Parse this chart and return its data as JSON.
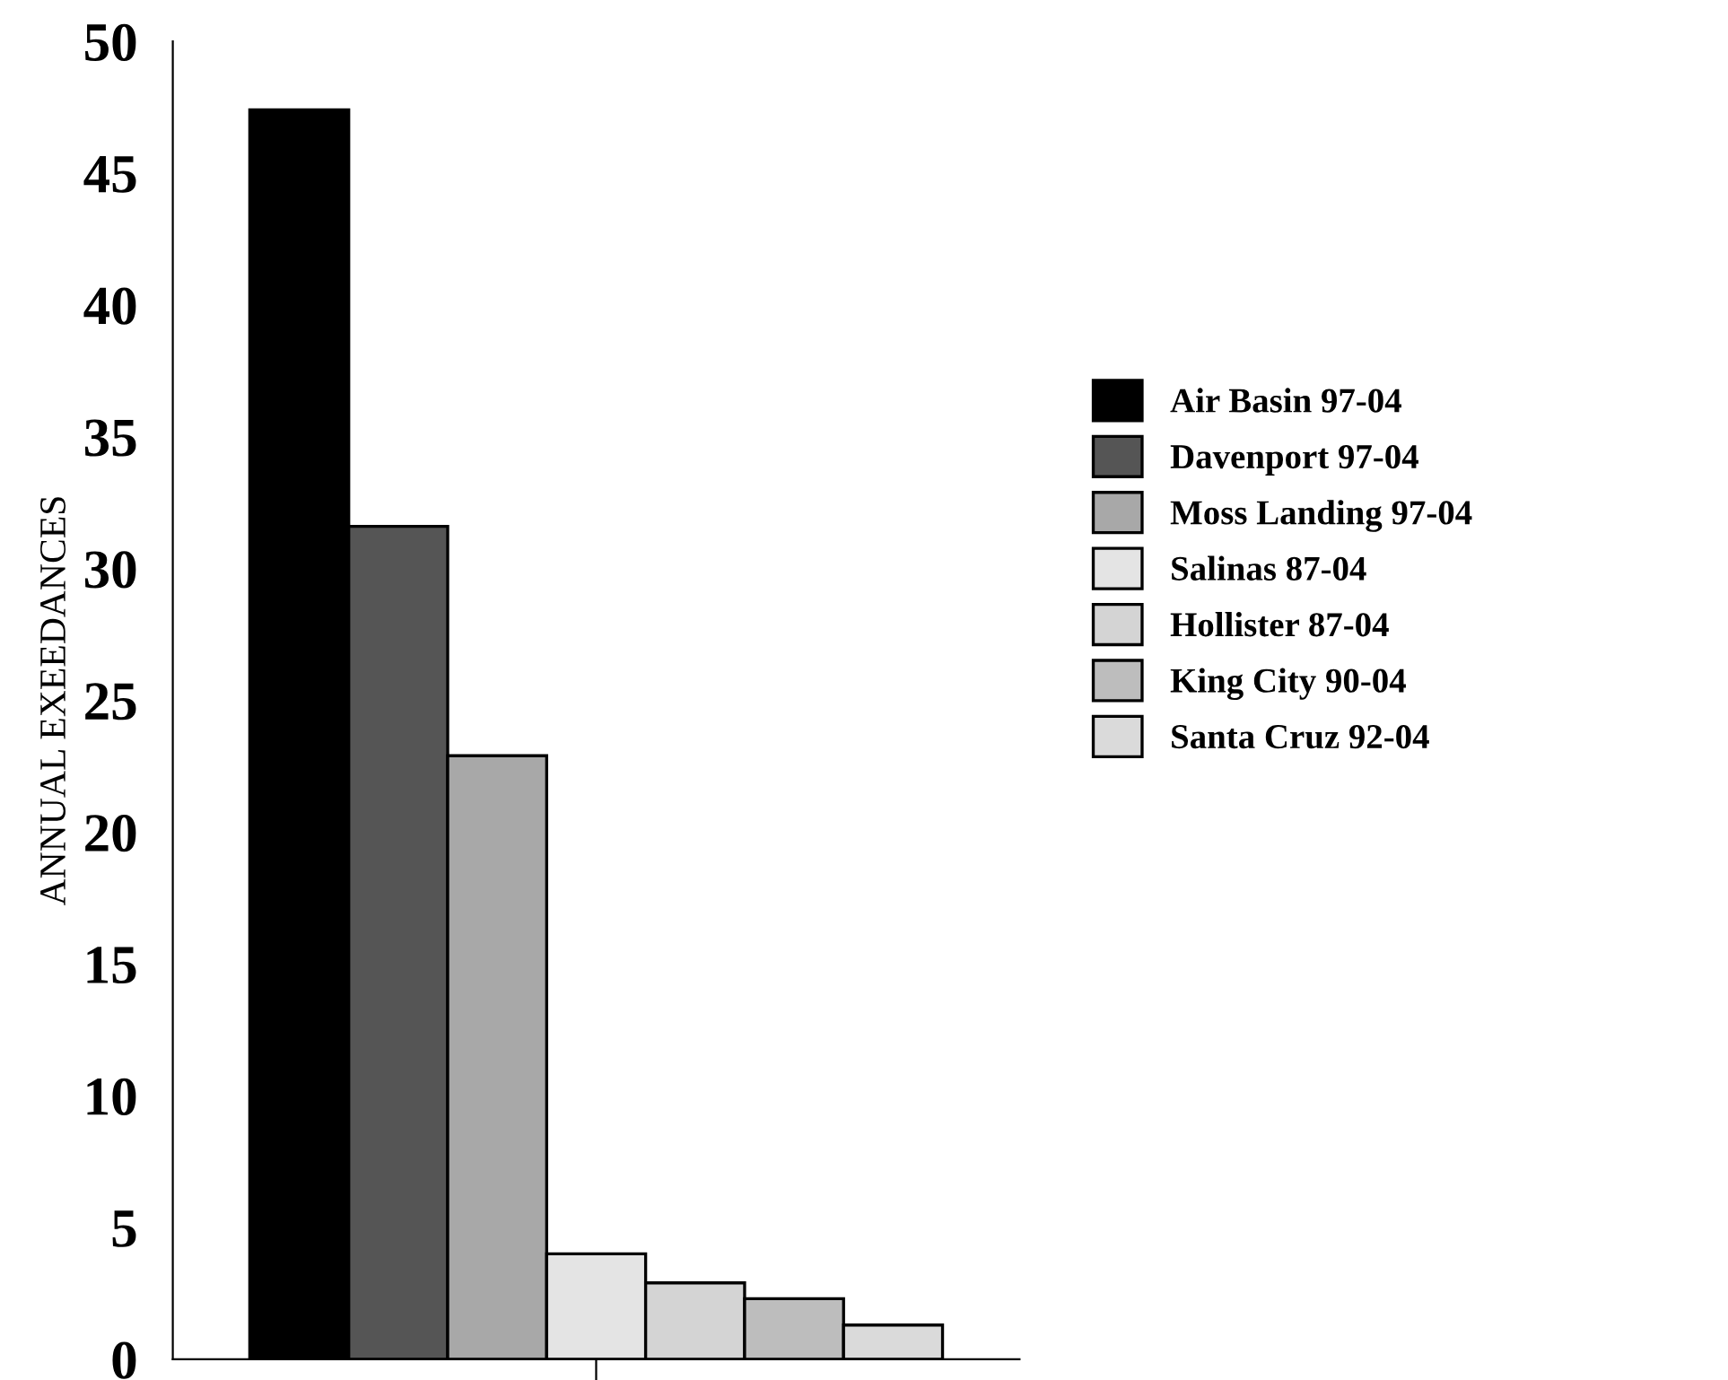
{
  "chart_data": {
    "type": "bar",
    "ylabel": "ANNUAL EXEEDANCES",
    "categories": [
      null
    ],
    "series": [
      {
        "name": "Air Basin 97-04",
        "color": "#000000",
        "values": [
          47.4
        ]
      },
      {
        "name": "Davenport 97-04",
        "color": "#555555",
        "values": [
          31.6
        ]
      },
      {
        "name": "Moss Landing 97-04",
        "color": "#a8a8a8",
        "values": [
          22.9
        ]
      },
      {
        "name": "Salinas 87-04",
        "color": "#e4e4e4",
        "values": [
          4.0
        ]
      },
      {
        "name": "Hollister 87-04",
        "color": "#d4d4d4",
        "values": [
          2.9
        ]
      },
      {
        "name": "King City 90-04",
        "color": "#bdbdbd",
        "values": [
          2.3
        ]
      },
      {
        "name": "Santa Cruz 92-04",
        "color": "#dadada",
        "values": [
          1.3
        ]
      }
    ],
    "ylim": [
      0,
      50
    ],
    "yticks": [
      0,
      5,
      10,
      15,
      20,
      25,
      30,
      35,
      40,
      45,
      50
    ],
    "grid": false,
    "legend": "right"
  }
}
